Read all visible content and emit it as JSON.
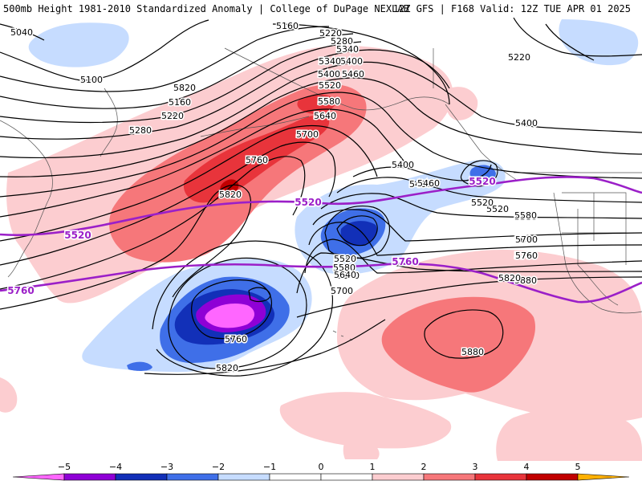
{
  "header": {
    "title_left": "500mb Height 1981-2010 Standardized Anomaly | College of DuPage NEXLAB",
    "title_right": "12Z GFS | F168 Valid: 12Z TUE APR 01 2025"
  },
  "colors": {
    "anom_neg5": "#ff66ff",
    "anom_neg4": "#8f00d6",
    "anom_neg3": "#1230b8",
    "anom_neg2": "#3f6fe8",
    "anom_neg1": "#c6dcff",
    "anom_pos1": "#fccdd0",
    "anom_pos2": "#f6777a",
    "anom_pos3": "#e8343b",
    "anom_pos4": "#c10000",
    "anom_pos5": "#ffb000",
    "height_contour": "#000000",
    "highlight_contour": "#9b1fc8"
  },
  "contour_labels": [
    "5040",
    "5100",
    "5160",
    "5220",
    "5280",
    "5340",
    "5400",
    "5460",
    "5520",
    "5580",
    "5640",
    "5700",
    "5760",
    "5820",
    "5880",
    "5400",
    "5460",
    "5520",
    "5580",
    "5640",
    "5700",
    "5760",
    "5820",
    "5160",
    "5220",
    "5280",
    "5340",
    "5400",
    "5460",
    "5520",
    "5580",
    "5640",
    "5700",
    "5760",
    "5820",
    "5880",
    "5220",
    "5400",
    "5520",
    "5580",
    "5700",
    "5760",
    "5820",
    "5640"
  ],
  "highlight_labels": [
    "5520",
    "5520",
    "5520",
    "5760",
    "5760"
  ],
  "colorbar": {
    "ticks": [
      "−5",
      "−4",
      "−3",
      "−2",
      "−1",
      "0",
      "1",
      "2",
      "3",
      "4",
      "5"
    ],
    "min": -5,
    "max": 5
  }
}
